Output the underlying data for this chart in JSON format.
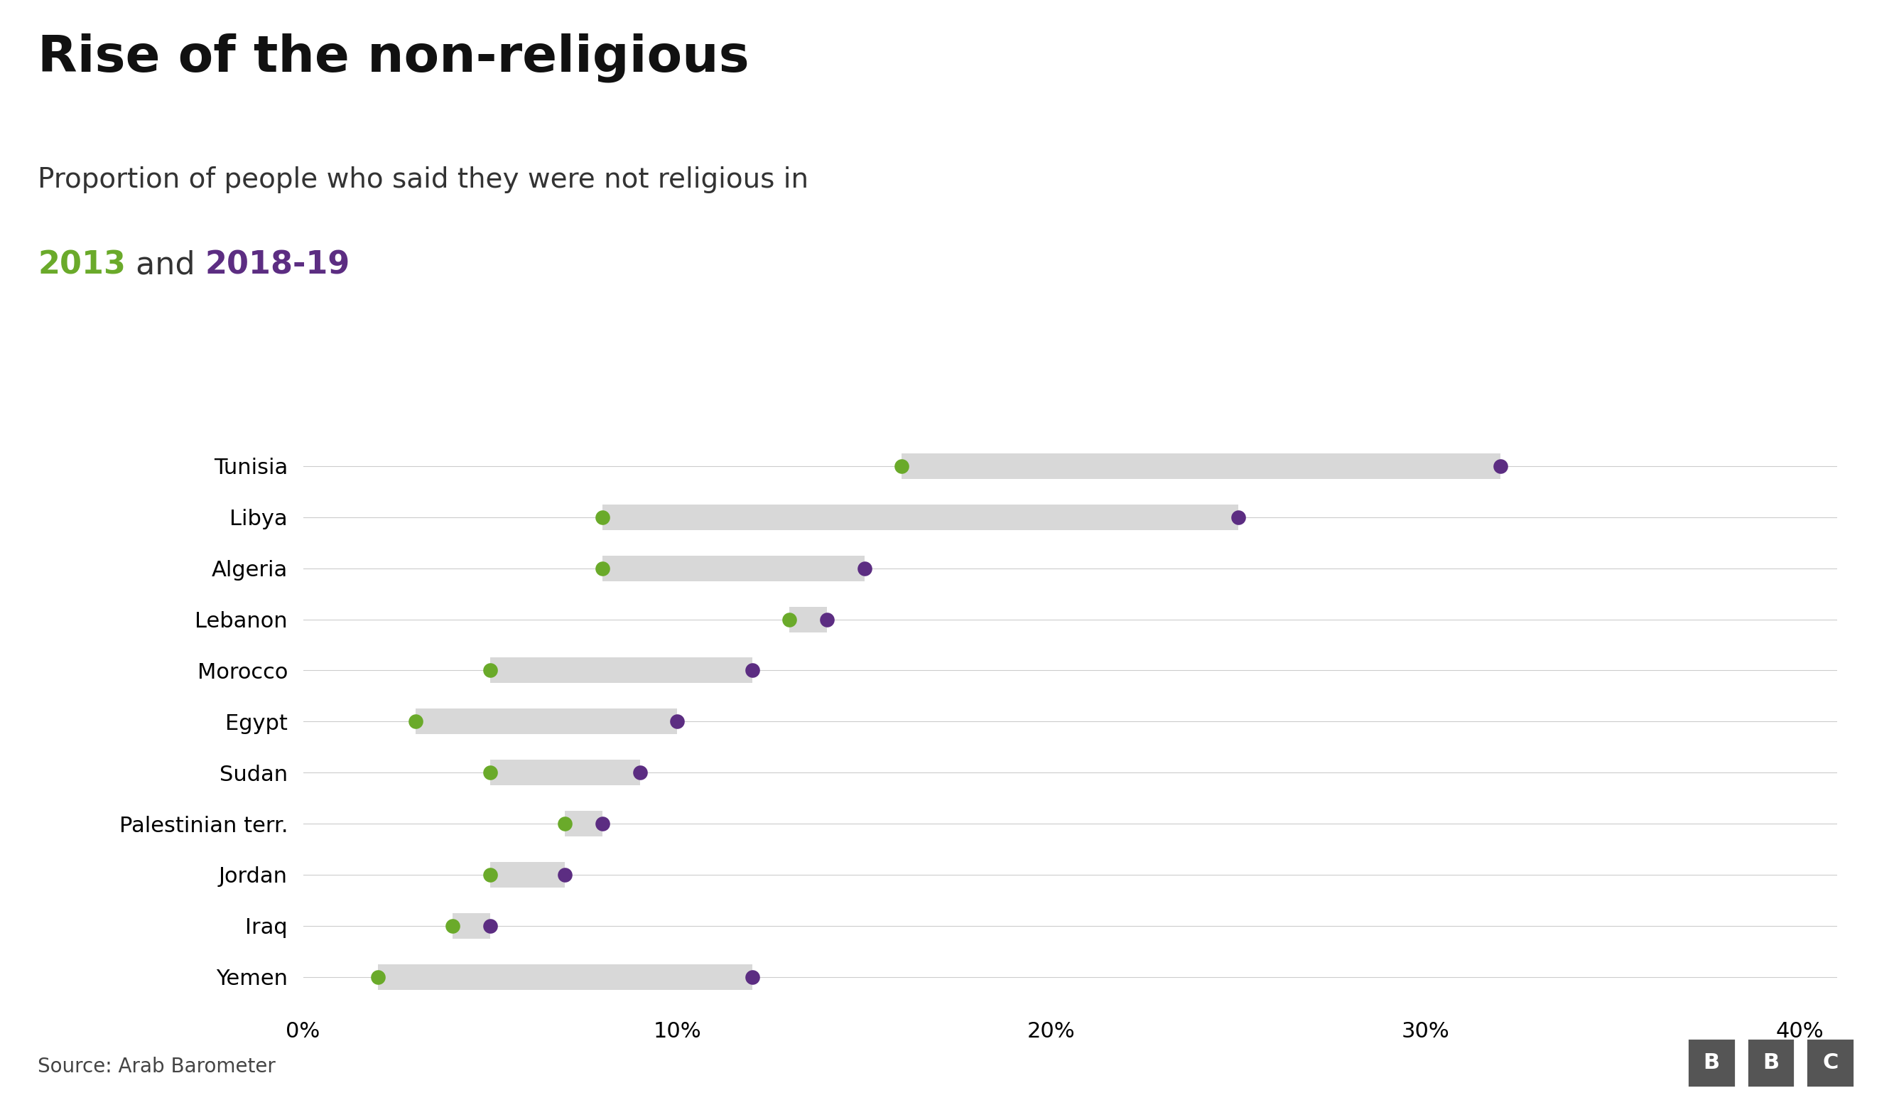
{
  "title": "Rise of the non-religious",
  "subtitle_line1": "Proportion of people who said they were not religious in",
  "subtitle_line2_parts": [
    {
      "text": "2013",
      "color": "#6aaa2a"
    },
    {
      "text": " and ",
      "color": "#333333"
    },
    {
      "text": "2018-19",
      "color": "#5c2d82"
    }
  ],
  "countries": [
    "Tunisia",
    "Libya",
    "Algeria",
    "Lebanon",
    "Morocco",
    "Egypt",
    "Sudan",
    "Palestinian terr.",
    "Jordan",
    "Iraq",
    "Yemen"
  ],
  "data_2013": [
    16,
    8,
    8,
    13,
    5,
    3,
    5,
    7,
    5,
    4,
    2
  ],
  "data_2019": [
    32,
    25,
    15,
    14,
    12,
    10,
    9,
    8,
    7,
    5,
    12
  ],
  "color_2013": "#6aaa2a",
  "color_2019": "#5c2d82",
  "bar_color": "#d8d8d8",
  "xlim": [
    0,
    41
  ],
  "xticks": [
    0,
    10,
    20,
    30,
    40
  ],
  "xticklabels": [
    "0%",
    "10%",
    "20%",
    "30%",
    "40%"
  ],
  "background_color": "#ffffff",
  "source_text": "Source: Arab Barometer",
  "bbc_text": "BBC",
  "title_fontsize": 52,
  "subtitle_fontsize": 28,
  "subtitle2_fontsize": 32,
  "tick_fontsize": 22,
  "country_fontsize": 22,
  "dot_size": 220
}
